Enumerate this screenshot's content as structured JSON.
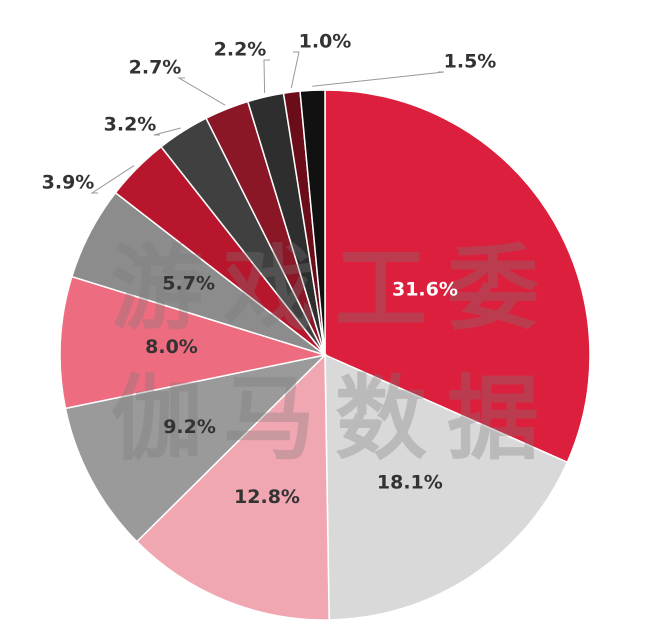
{
  "chart_data": {
    "type": "pie",
    "values": [
      31.6,
      18.1,
      12.8,
      9.2,
      8.0,
      5.7,
      3.9,
      3.2,
      2.7,
      2.2,
      1.0,
      1.5
    ],
    "value_labels": [
      "31.6%",
      "18.1%",
      "12.8%",
      "9.2%",
      "8.0%",
      "5.7%",
      "3.9%",
      "3.2%",
      "2.7%",
      "2.2%",
      "1.0%",
      "1.5%"
    ],
    "colors": [
      "#dc1f3c",
      "#d9d9d9",
      "#f0a7b1",
      "#9a9a9a",
      "#ee6c7f",
      "#8c8c8c",
      "#b8162d",
      "#404040",
      "#8a1626",
      "#2e2e2e",
      "#6b0d19",
      "#111111"
    ],
    "label_colors": [
      "#ffffff",
      "#333333",
      "#333333",
      "#333333",
      "#333333",
      "#333333",
      "#333333",
      "#333333",
      "#333333",
      "#333333",
      "#333333",
      "#333333"
    ],
    "watermark": [
      "游戏工委",
      "伽马数据"
    ]
  }
}
